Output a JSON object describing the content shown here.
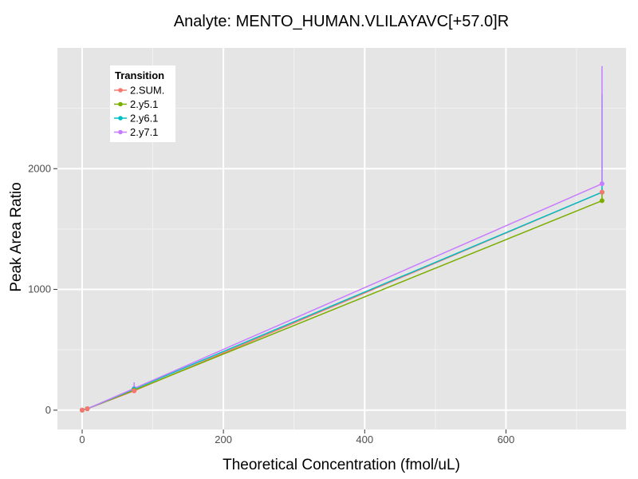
{
  "chart_data": {
    "type": "line",
    "title": "Analyte: MENTO_HUMAN.VLILAYAVC[+57.0]R",
    "xlabel": "Theoretical Concentration (fmol/uL)",
    "ylabel": "Peak Area Ratio",
    "xlim": [
      -35,
      770
    ],
    "ylim": [
      -160,
      3000
    ],
    "xticks": [
      0,
      200,
      400,
      600
    ],
    "yticks": [
      0,
      1000,
      2000
    ],
    "grid": true,
    "legend": {
      "title": "Transition",
      "position": "top-left"
    },
    "series": [
      {
        "name": "2.SUM.",
        "color": "#F8766D",
        "x": [
          0,
          7.4,
          73.6,
          736
        ],
        "y": [
          0,
          12,
          160,
          1805
        ]
      },
      {
        "name": "2.y5.1",
        "color": "#7CAE00",
        "x": [
          0,
          7.4,
          73.6,
          736
        ],
        "y": [
          0,
          12,
          165,
          1735
        ],
        "error_upper": [
          0,
          0,
          0,
          1840
        ]
      },
      {
        "name": "2.y6.1",
        "color": "#00BFC4",
        "x": [
          0,
          7.4,
          73.6,
          736
        ],
        "y": [
          0,
          12,
          175,
          1805
        ],
        "error_upper": [
          0,
          0,
          0,
          2620
        ]
      },
      {
        "name": "2.y7.1",
        "color": "#C77CFF",
        "x": [
          0,
          7.4,
          73.6,
          736
        ],
        "y": [
          0,
          12,
          180,
          1875
        ],
        "error_upper": [
          0,
          0,
          230,
          2850
        ]
      }
    ]
  }
}
